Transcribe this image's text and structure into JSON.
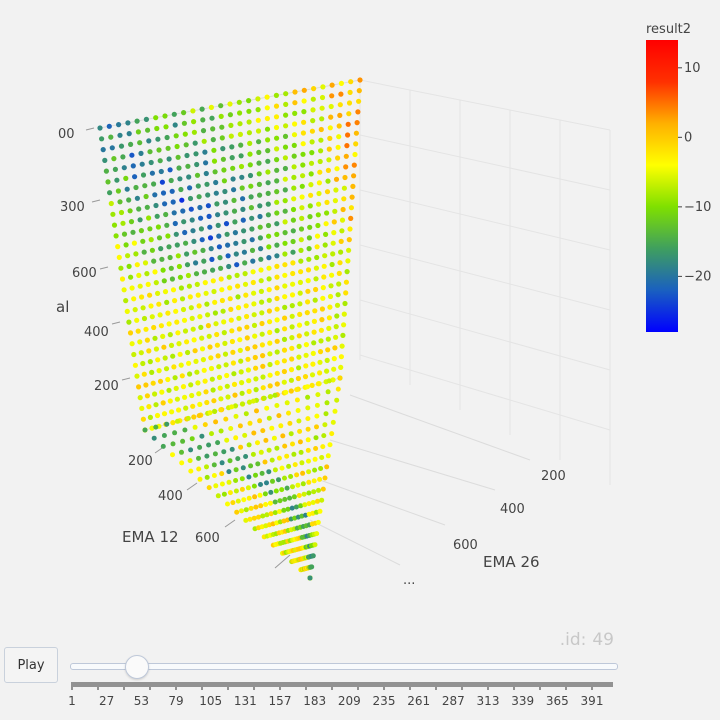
{
  "chart_data": {
    "type": "scatter3d",
    "axes": {
      "x": {
        "title": "EMA 12",
        "tick_labels": [
          "200",
          "400",
          "600"
        ]
      },
      "y": {
        "title": "EMA 26",
        "tick_labels": [
          "200",
          "400",
          "600",
          "..."
        ]
      },
      "z": {
        "title": "al",
        "tick_labels": [
          "200",
          "400",
          "600",
          "300",
          "00"
        ]
      }
    },
    "colorbar": {
      "title": "result2",
      "range": [
        -28,
        14
      ],
      "tick_labels": [
        "10",
        "0",
        "−10",
        "−20"
      ],
      "tick_values": [
        10,
        0,
        -10,
        -20
      ],
      "colors": [
        "#0000ff",
        "#1a60c0",
        "#3f9f5f",
        "#7fe000",
        "#ffff00",
        "#ffb000",
        "#ff3000",
        "#ff0000"
      ]
    },
    "points_summary": "dense grid of markers colored by result2, mostly between -28 and 0"
  },
  "animation": {
    "frame_label": ".id:",
    "frame_value": "49",
    "play_label": "Play",
    "slider_labels": [
      "1",
      "27",
      "53",
      "79",
      "105",
      "131",
      "157",
      "183",
      "209",
      "235",
      "261",
      "287",
      "313",
      "339",
      "365",
      "391"
    ],
    "slider_position": 0.12
  }
}
